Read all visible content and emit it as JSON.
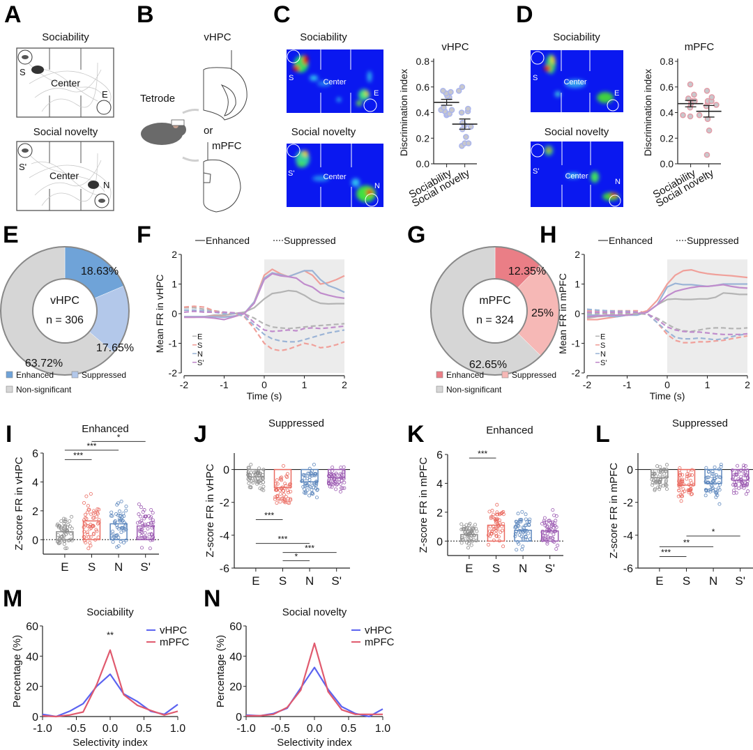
{
  "panel_labels": {
    "A": "A",
    "B": "B",
    "C": "C",
    "D": "D",
    "E": "E",
    "F": "F",
    "G": "G",
    "H": "H",
    "I": "I",
    "J": "J",
    "K": "K",
    "L": "L",
    "M": "M",
    "N": "N"
  },
  "panelA": {
    "top_title": "Sociability",
    "bottom_title": "Social novelty",
    "top_labels": {
      "left": "S",
      "center": "Center",
      "right": "E"
    },
    "bottom_labels": {
      "left": "S'",
      "center": "Center",
      "right": "N"
    }
  },
  "panelB": {
    "vhpc": "vHPC",
    "tetrode": "Tetrode",
    "or": "or",
    "mpfc": "mPFC"
  },
  "panelC": {
    "top_title": "Sociability",
    "bottom_title": "Social novelty",
    "top_labels": {
      "left": "S",
      "center": "Center",
      "right": "E"
    },
    "bottom_labels": {
      "left": "S'",
      "center": "Center",
      "right": "N"
    }
  },
  "panelD": {
    "top_title": "Sociability",
    "bottom_title": "Social novelty",
    "top_labels": {
      "left": "S",
      "center": "Center",
      "right": "E"
    },
    "bottom_labels": {
      "left": "S'",
      "center": "Center",
      "right": "N"
    }
  },
  "legend_FH": {
    "enhanced": "Enhanced",
    "suppressed": "Suppressed",
    "E": "E",
    "S": "S",
    "N": "N",
    "Sp": "S'"
  },
  "colors": {
    "E": "#b4b4b4",
    "S": "#f0a09a",
    "N": "#9bb4d6",
    "Sp": "#c08ccc",
    "vhpc_dot": "#a9b4ee",
    "mpfc_dot": "#e49aa6",
    "vhpc_enh": "#6fa3d8",
    "vhpc_sup": "#b3c8ea",
    "nonsig": "#d6d6d6",
    "mpfc_enh": "#ea7e86",
    "mpfc_sup": "#f6b8b6",
    "line_vhpc": "#5b63f0",
    "line_mpfc": "#e05a6e",
    "bar_E": "#8c8c8c",
    "bar_S": "#ea6a60",
    "bar_N": "#5d87bd",
    "bar_Sp": "#9a58b0"
  },
  "chart_data": [
    {
      "id": "C",
      "type": "scatter",
      "title": "vHPC",
      "ylabel": "Discrimination index",
      "categories": [
        "Sociability",
        "Social novelty"
      ],
      "ylim": [
        0,
        0.8
      ],
      "yticks": [
        0.0,
        0.2,
        0.4,
        0.6,
        0.8
      ],
      "points": [
        [
          0.38,
          0.39,
          0.39,
          0.41,
          0.42,
          0.42,
          0.44,
          0.52,
          0.53,
          0.55,
          0.56,
          0.57,
          0.57
        ],
        [
          0.14,
          0.16,
          0.16,
          0.21,
          0.27,
          0.29,
          0.3,
          0.32,
          0.4,
          0.41,
          0.43,
          0.6
        ]
      ],
      "mean": [
        0.48,
        0.31
      ],
      "sem": [
        0.023,
        0.04
      ]
    },
    {
      "id": "D",
      "type": "scatter",
      "title": "mPFC",
      "ylabel": "Discrimination index",
      "categories": [
        "Sociability",
        "Social novelty"
      ],
      "ylim": [
        0,
        0.8
      ],
      "yticks": [
        0.0,
        0.2,
        0.4,
        0.6,
        0.8
      ],
      "points": [
        [
          0.37,
          0.38,
          0.38,
          0.44,
          0.47,
          0.49,
          0.49,
          0.51,
          0.54,
          0.62
        ],
        [
          0.07,
          0.26,
          0.35,
          0.45,
          0.46,
          0.48,
          0.49,
          0.49,
          0.52,
          0.57
        ]
      ],
      "mean": [
        0.47,
        0.41
      ],
      "sem": [
        0.025,
        0.045
      ]
    },
    {
      "id": "E",
      "type": "pie",
      "center_title": "vHPC",
      "center_n": "n = 306",
      "slices": [
        {
          "label": "Enhanced",
          "value": 18.63,
          "text": "18.63%",
          "color_key": "vhpc_enh"
        },
        {
          "label": "Suppressed",
          "value": 17.65,
          "text": "17.65%",
          "color_key": "vhpc_sup"
        },
        {
          "label": "Non-significant",
          "value": 63.72,
          "text": "63.72%",
          "color_key": "nonsig"
        }
      ]
    },
    {
      "id": "F",
      "type": "line",
      "ylabel": "Mean FR in vHPC",
      "xlabel": "Time (s)",
      "xlim": [
        -2,
        2
      ],
      "ylim": [
        -2,
        2
      ],
      "xticks": [
        -2,
        -1,
        0,
        1,
        2
      ],
      "yticks": [
        -2,
        -1,
        0,
        1,
        2
      ],
      "shaded": [
        0,
        2
      ],
      "x": [
        -2,
        -1.75,
        -1.5,
        -1.25,
        -1,
        -0.75,
        -0.5,
        -0.25,
        0,
        0.2,
        0.4,
        0.6,
        0.8,
        1.0,
        1.2,
        1.4,
        1.6,
        1.8,
        2.0
      ],
      "series": [
        {
          "name": "E",
          "style": "solid",
          "values": [
            -0.1,
            -0.1,
            -0.1,
            -0.05,
            -0.05,
            0.0,
            0.05,
            0.2,
            0.5,
            0.68,
            0.72,
            0.78,
            0.75,
            0.62,
            0.45,
            0.35,
            0.33,
            0.34,
            0.34
          ]
        },
        {
          "name": "S",
          "style": "solid",
          "values": [
            -0.12,
            -0.12,
            -0.1,
            -0.08,
            -0.1,
            -0.08,
            0.0,
            0.4,
            1.3,
            1.5,
            1.35,
            1.25,
            1.35,
            1.45,
            1.3,
            1.0,
            1.05,
            1.15,
            1.28
          ]
        },
        {
          "name": "N",
          "style": "solid",
          "values": [
            -0.1,
            -0.1,
            -0.1,
            -0.1,
            -0.12,
            -0.08,
            0.0,
            0.4,
            1.2,
            1.38,
            1.32,
            1.25,
            1.35,
            1.45,
            1.45,
            1.15,
            0.95,
            0.85,
            0.72
          ]
        },
        {
          "name": "S'",
          "style": "solid",
          "values": [
            -0.12,
            -0.12,
            -0.12,
            -0.15,
            -0.2,
            -0.1,
            0.0,
            0.35,
            1.15,
            1.35,
            1.28,
            1.25,
            1.2,
            1.0,
            0.9,
            0.7,
            0.62,
            0.56,
            0.52
          ]
        },
        {
          "name": "E",
          "style": "dashed",
          "values": [
            0.2,
            0.2,
            0.15,
            0.1,
            0.05,
            0.02,
            0.0,
            -0.15,
            -0.35,
            -0.45,
            -0.48,
            -0.5,
            -0.48,
            -0.45,
            -0.42,
            -0.4,
            -0.38,
            -0.36,
            -0.34
          ]
        },
        {
          "name": "S",
          "style": "dashed",
          "values": [
            0.22,
            0.25,
            0.22,
            0.1,
            0.0,
            0.0,
            -0.1,
            -0.5,
            -1.0,
            -1.2,
            -1.25,
            -1.2,
            -1.1,
            -1.0,
            -1.05,
            -1.15,
            -1.12,
            -1.05,
            -0.95
          ]
        },
        {
          "name": "N",
          "style": "dashed",
          "values": [
            0.12,
            0.12,
            0.1,
            0.05,
            0.0,
            0.0,
            -0.08,
            -0.4,
            -0.7,
            -0.85,
            -0.92,
            -0.95,
            -0.95,
            -0.88,
            -0.8,
            -0.72,
            -0.65,
            -0.6,
            -0.55
          ]
        },
        {
          "name": "S'",
          "style": "dashed",
          "values": [
            0.05,
            0.08,
            0.05,
            0.05,
            0.05,
            0.03,
            0.0,
            -0.3,
            -0.55,
            -0.6,
            -0.58,
            -0.55,
            -0.58,
            -0.5,
            -0.48,
            -0.5,
            -0.48,
            -0.45,
            -0.42
          ]
        }
      ]
    },
    {
      "id": "G",
      "type": "pie",
      "center_title": "mPFC",
      "center_n": "n = 324",
      "slices": [
        {
          "label": "Enhanced",
          "value": 12.35,
          "text": "12.35%",
          "color_key": "mpfc_enh"
        },
        {
          "label": "Suppressed",
          "value": 25,
          "text": "25%",
          "color_key": "mpfc_sup"
        },
        {
          "label": "Non-significant",
          "value": 62.65,
          "text": "62.65%",
          "color_key": "nonsig"
        }
      ]
    },
    {
      "id": "H",
      "type": "line",
      "ylabel": "Mean FR in mPFC",
      "xlabel": "Time (s)",
      "xlim": [
        -2,
        2
      ],
      "ylim": [
        -2,
        2
      ],
      "xticks": [
        -2,
        -1,
        0,
        1,
        2
      ],
      "yticks": [
        -2,
        -1,
        0,
        1,
        2
      ],
      "shaded": [
        0,
        2
      ],
      "x": [
        -2,
        -1.75,
        -1.5,
        -1.25,
        -1,
        -0.75,
        -0.5,
        -0.25,
        0,
        0.2,
        0.4,
        0.6,
        0.8,
        1.0,
        1.2,
        1.4,
        1.6,
        1.8,
        2.0
      ],
      "series": [
        {
          "name": "E",
          "style": "solid",
          "values": [
            -0.15,
            -0.1,
            -0.08,
            -0.05,
            -0.05,
            0.0,
            0.05,
            0.3,
            0.48,
            0.5,
            0.48,
            0.48,
            0.5,
            0.5,
            0.55,
            0.7,
            0.68,
            0.65,
            0.65
          ]
        },
        {
          "name": "S",
          "style": "solid",
          "values": [
            -0.2,
            -0.2,
            -0.15,
            -0.1,
            -0.05,
            0.0,
            0.1,
            0.45,
            1.0,
            1.3,
            1.45,
            1.48,
            1.4,
            1.35,
            1.32,
            1.3,
            1.28,
            1.25,
            1.22
          ]
        },
        {
          "name": "N",
          "style": "solid",
          "values": [
            -0.05,
            -0.05,
            -0.08,
            -0.1,
            -0.05,
            -0.05,
            0.05,
            0.3,
            0.9,
            1.02,
            0.98,
            0.98,
            0.95,
            0.92,
            0.95,
            1.0,
            1.0,
            1.0,
            1.0
          ]
        },
        {
          "name": "S'",
          "style": "solid",
          "values": [
            -0.1,
            -0.08,
            -0.05,
            -0.05,
            -0.05,
            0.0,
            0.05,
            0.3,
            0.6,
            0.75,
            0.82,
            0.88,
            0.92,
            0.92,
            0.95,
            0.98,
            0.92,
            0.88,
            0.86
          ]
        },
        {
          "name": "E",
          "style": "dashed",
          "values": [
            0.0,
            0.0,
            0.0,
            0.0,
            0.0,
            0.0,
            -0.02,
            -0.15,
            -0.35,
            -0.5,
            -0.58,
            -0.6,
            -0.55,
            -0.5,
            -0.48,
            -0.48,
            -0.5,
            -0.5,
            -0.48
          ]
        },
        {
          "name": "S",
          "style": "dashed",
          "values": [
            0.1,
            0.1,
            0.1,
            0.1,
            0.1,
            0.1,
            0.0,
            -0.3,
            -0.7,
            -0.9,
            -0.98,
            -0.98,
            -0.95,
            -0.95,
            -0.92,
            -0.9,
            -0.85,
            -0.8,
            -0.75
          ]
        },
        {
          "name": "N",
          "style": "dashed",
          "values": [
            0.15,
            0.12,
            0.1,
            0.08,
            0.08,
            0.05,
            0.0,
            -0.3,
            -0.6,
            -0.8,
            -0.85,
            -0.85,
            -0.82,
            -0.85,
            -0.88,
            -0.85,
            -0.78,
            -0.72,
            -0.68
          ]
        },
        {
          "name": "S'",
          "style": "dashed",
          "values": [
            0.05,
            0.05,
            0.05,
            0.05,
            0.05,
            0.05,
            0.0,
            -0.2,
            -0.45,
            -0.55,
            -0.6,
            -0.62,
            -0.62,
            -0.65,
            -0.68,
            -0.7,
            -0.7,
            -0.7,
            -0.68
          ]
        }
      ]
    },
    {
      "id": "I",
      "type": "bar",
      "title": "Enhanced",
      "ylabel": "Z-score FR in vHPC",
      "categories": [
        "E",
        "S",
        "N",
        "S'"
      ],
      "ylim": [
        -1,
        6
      ],
      "yticks": [
        0,
        2,
        4,
        6
      ],
      "values": [
        0.55,
        1.3,
        1.1,
        0.95
      ],
      "sig": [
        {
          "from": 0,
          "to": 1,
          "label": "***"
        },
        {
          "from": 0,
          "to": 2,
          "label": "***"
        },
        {
          "from": 1,
          "to": 3,
          "label": "*"
        }
      ]
    },
    {
      "id": "J",
      "type": "bar",
      "title": "Suppressed",
      "ylabel": "Z-score FR in vHPC",
      "categories": [
        "E",
        "S",
        "N",
        "S'"
      ],
      "ylim": [
        -6,
        1
      ],
      "yticks": [
        -6,
        -4,
        -2,
        0
      ],
      "values": [
        -0.45,
        -1.1,
        -0.75,
        -0.5
      ],
      "sig": [
        {
          "from": 0,
          "to": 1,
          "label": "***"
        },
        {
          "from": 0,
          "to": 2,
          "label": "***"
        },
        {
          "from": 1,
          "to": 3,
          "label": "***"
        },
        {
          "from": 1,
          "to": 2,
          "label": "*"
        }
      ]
    },
    {
      "id": "K",
      "type": "bar",
      "title": "Enhanced",
      "ylabel": "Z-score FR in mPFC",
      "categories": [
        "E",
        "S",
        "N",
        "S'"
      ],
      "ylim": [
        -1,
        6
      ],
      "yticks": [
        0,
        2,
        4,
        6
      ],
      "values": [
        0.45,
        1.1,
        0.75,
        0.7
      ],
      "sig": [
        {
          "from": 0,
          "to": 1,
          "label": "***"
        }
      ]
    },
    {
      "id": "L",
      "type": "bar",
      "title": "Suppressed",
      "ylabel": "Z-score FR in mPFC",
      "categories": [
        "E",
        "S",
        "N",
        "S'"
      ],
      "ylim": [
        -6,
        1
      ],
      "yticks": [
        -6,
        -4,
        -2,
        0
      ],
      "values": [
        -0.5,
        -0.95,
        -0.85,
        -0.65
      ],
      "sig": [
        {
          "from": 1,
          "to": 3,
          "label": "*"
        },
        {
          "from": 0,
          "to": 2,
          "label": "**"
        },
        {
          "from": 0,
          "to": 1,
          "label": "***"
        }
      ]
    },
    {
      "id": "M",
      "type": "line",
      "title": "Sociability",
      "xlabel": "Selectivity index",
      "ylabel": "Percentage (%)",
      "xlim": [
        -1,
        1
      ],
      "ylim": [
        0,
        60
      ],
      "xticks": [
        -1.0,
        -0.5,
        0.0,
        0.5,
        1.0
      ],
      "xticklabels": [
        "-1.0",
        "-0.5",
        "0.0",
        "0.5",
        "1.0"
      ],
      "yticks": [
        0,
        20,
        40,
        60
      ],
      "annotation": "**",
      "x": [
        -1.0,
        -0.8,
        -0.6,
        -0.4,
        -0.2,
        0.0,
        0.2,
        0.4,
        0.6,
        0.8,
        1.0
      ],
      "series": [
        {
          "name": "vHPC",
          "values": [
            1.5,
            0,
            3.5,
            8.5,
            20,
            28,
            15,
            10,
            3.5,
            1.5,
            8
          ]
        },
        {
          "name": "mPFC",
          "values": [
            0.5,
            0,
            1,
            3,
            21,
            44,
            14.5,
            7.5,
            4,
            1,
            3.5
          ]
        }
      ]
    },
    {
      "id": "N",
      "type": "line",
      "title": "Social novelty",
      "xlabel": "Selectivity index",
      "ylabel": "Percentage (%)",
      "xlim": [
        -1,
        1
      ],
      "ylim": [
        0,
        60
      ],
      "xticks": [
        -1.0,
        -0.5,
        0.0,
        0.5,
        1.0
      ],
      "xticklabels": [
        "-1.0",
        "-0.5",
        "0.0",
        "0.5",
        "1.0"
      ],
      "yticks": [
        0,
        20,
        40,
        60
      ],
      "x": [
        -1.0,
        -0.8,
        -0.6,
        -0.4,
        -0.2,
        0.0,
        0.2,
        0.4,
        0.6,
        0.8,
        1.0
      ],
      "series": [
        {
          "name": "vHPC",
          "values": [
            1,
            0.5,
            2,
            5.5,
            19,
            32.5,
            18,
            6.5,
            2,
            0,
            5
          ]
        },
        {
          "name": "mPFC",
          "values": [
            0.5,
            0.5,
            1.5,
            6,
            17.5,
            48.5,
            16.5,
            4.5,
            1.5,
            1.5,
            1.5
          ]
        }
      ]
    }
  ]
}
